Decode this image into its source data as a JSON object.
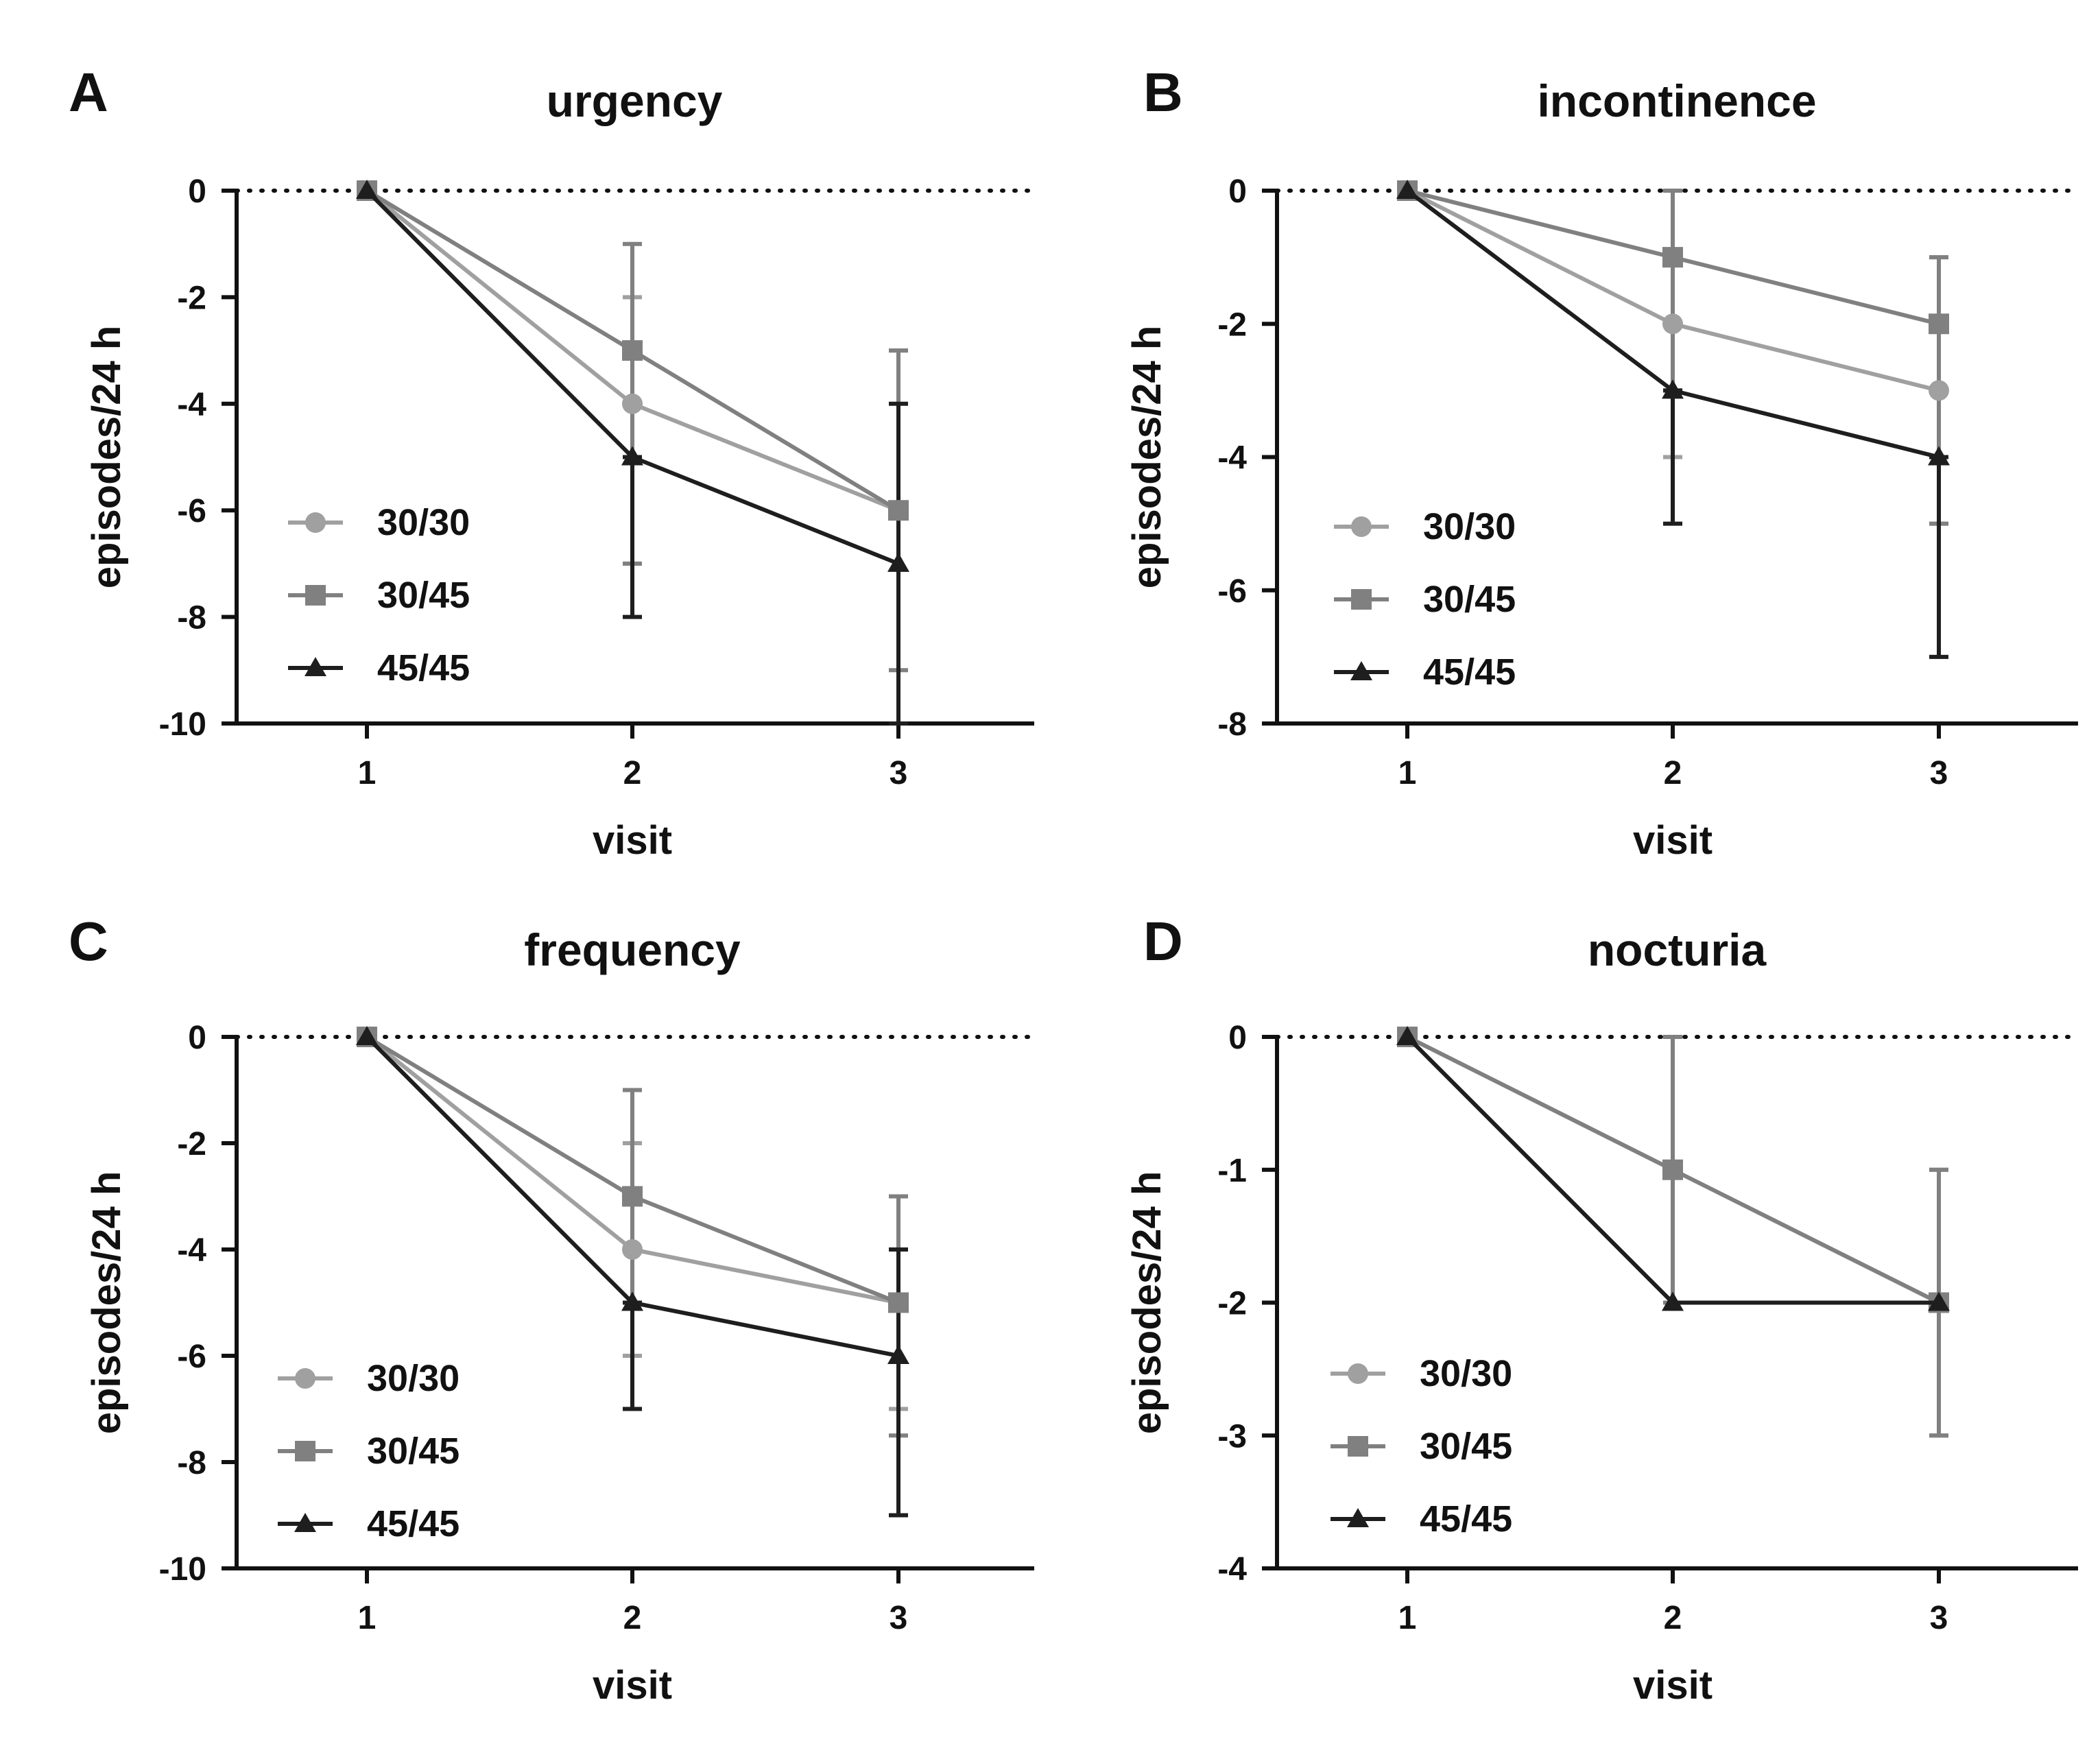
{
  "figure": {
    "panels_count": 4
  },
  "series_styles": [
    {
      "name": "30/30",
      "color": "#a0a0a0",
      "marker": "circle"
    },
    {
      "name": "30/45",
      "color": "#808080",
      "marker": "square"
    },
    {
      "name": "45/45",
      "color": "#1e1e1e",
      "marker": "triangle"
    }
  ],
  "chart_data": [
    {
      "panel": "A",
      "type": "line",
      "title": "urgency",
      "xlabel": "visit",
      "ylabel": "episodes/24 h",
      "x": [
        1,
        2,
        3
      ],
      "ylim": [
        -10,
        0
      ],
      "yticks": [
        0,
        -2,
        -4,
        -6,
        -8,
        -10
      ],
      "ytick_labels": [
        "0",
        "-2",
        "-4",
        "-6",
        "-8",
        "-10"
      ],
      "xticks": [
        1,
        2,
        3
      ],
      "xtick_labels": [
        "1",
        "2",
        "3"
      ],
      "reference_line": 0,
      "legend": "lower-left",
      "series": [
        {
          "name": "30/30",
          "values": [
            0,
            -4,
            -6
          ],
          "err_low": [
            0,
            -7,
            -10
          ],
          "err_high": [
            0,
            -2,
            -3
          ]
        },
        {
          "name": "30/45",
          "values": [
            0,
            -3,
            -6
          ],
          "err_low": [
            0,
            -7,
            -9
          ],
          "err_high": [
            0,
            -1,
            -3
          ]
        },
        {
          "name": "45/45",
          "values": [
            0,
            -5,
            -7
          ],
          "err_low": [
            0,
            -8,
            -10
          ],
          "err_high": [
            0,
            -5,
            -4
          ]
        }
      ]
    },
    {
      "panel": "B",
      "type": "line",
      "title": "incontinence",
      "xlabel": "visit",
      "ylabel": "episodes/24 h",
      "x": [
        1,
        2,
        3
      ],
      "ylim": [
        -8,
        0
      ],
      "yticks": [
        0,
        -2,
        -4,
        -6,
        -8
      ],
      "ytick_labels": [
        "0",
        "-2",
        "-4",
        "-6",
        "-8"
      ],
      "xticks": [
        1,
        2,
        3
      ],
      "xtick_labels": [
        "1",
        "2",
        "3"
      ],
      "reference_line": 0,
      "legend": "lower-left",
      "series": [
        {
          "name": "30/30",
          "values": [
            0,
            -2,
            -3
          ],
          "err_low": [
            0,
            -4,
            -5
          ],
          "err_high": [
            0,
            -1,
            -1
          ]
        },
        {
          "name": "30/45",
          "values": [
            0,
            -1,
            -2
          ],
          "err_low": [
            0,
            -3,
            -5
          ],
          "err_high": [
            0,
            0,
            -1
          ]
        },
        {
          "name": "45/45",
          "values": [
            0,
            -3,
            -4
          ],
          "err_low": [
            0,
            -5,
            -7
          ],
          "err_high": [
            0,
            -3,
            -4
          ]
        }
      ]
    },
    {
      "panel": "C",
      "type": "line",
      "title": "frequency",
      "xlabel": "visit",
      "ylabel": "episodes/24 h",
      "x": [
        1,
        2,
        3
      ],
      "ylim": [
        -10,
        0
      ],
      "yticks": [
        0,
        -2,
        -4,
        -6,
        -8,
        -10
      ],
      "ytick_labels": [
        "0",
        "-2",
        "-4",
        "-6",
        "-8",
        "-10"
      ],
      "xticks": [
        1,
        2,
        3
      ],
      "xtick_labels": [
        "1",
        "2",
        "3"
      ],
      "reference_line": 0,
      "legend": "lower-left",
      "series": [
        {
          "name": "30/30",
          "values": [
            0,
            -4,
            -5
          ],
          "err_low": [
            0,
            -6,
            -7
          ],
          "err_high": [
            0,
            -2,
            -3
          ]
        },
        {
          "name": "30/45",
          "values": [
            0,
            -3,
            -5
          ],
          "err_low": [
            0,
            -5,
            -7.5
          ],
          "err_high": [
            0,
            -1,
            -3
          ]
        },
        {
          "name": "45/45",
          "values": [
            0,
            -5,
            -6
          ],
          "err_low": [
            0,
            -7,
            -9
          ],
          "err_high": [
            0,
            -5,
            -4
          ]
        }
      ]
    },
    {
      "panel": "D",
      "type": "line",
      "title": "nocturia",
      "xlabel": "visit",
      "ylabel": "episodes/24 h",
      "x": [
        1,
        2,
        3
      ],
      "ylim": [
        -4,
        0
      ],
      "yticks": [
        0,
        -1,
        -2,
        -3,
        -4
      ],
      "ytick_labels": [
        "0",
        "-1",
        "-2",
        "-3",
        "-4"
      ],
      "xticks": [
        1,
        2,
        3
      ],
      "xtick_labels": [
        "1",
        "2",
        "3"
      ],
      "reference_line": 0,
      "legend": "lower-left",
      "series": [
        {
          "name": "30/30",
          "values": [
            0,
            -1,
            -2
          ],
          "err_low": [
            0,
            -2,
            -3
          ],
          "err_high": [
            0,
            0,
            -1
          ]
        },
        {
          "name": "30/45",
          "values": [
            0,
            -1,
            -2
          ],
          "err_low": [
            0,
            -2,
            -3
          ],
          "err_high": [
            0,
            0,
            -1
          ]
        },
        {
          "name": "45/45",
          "values": [
            0,
            -2,
            -2
          ],
          "err_low": [
            0,
            -2,
            -2
          ],
          "err_high": [
            0,
            -2,
            -2
          ]
        }
      ]
    }
  ]
}
